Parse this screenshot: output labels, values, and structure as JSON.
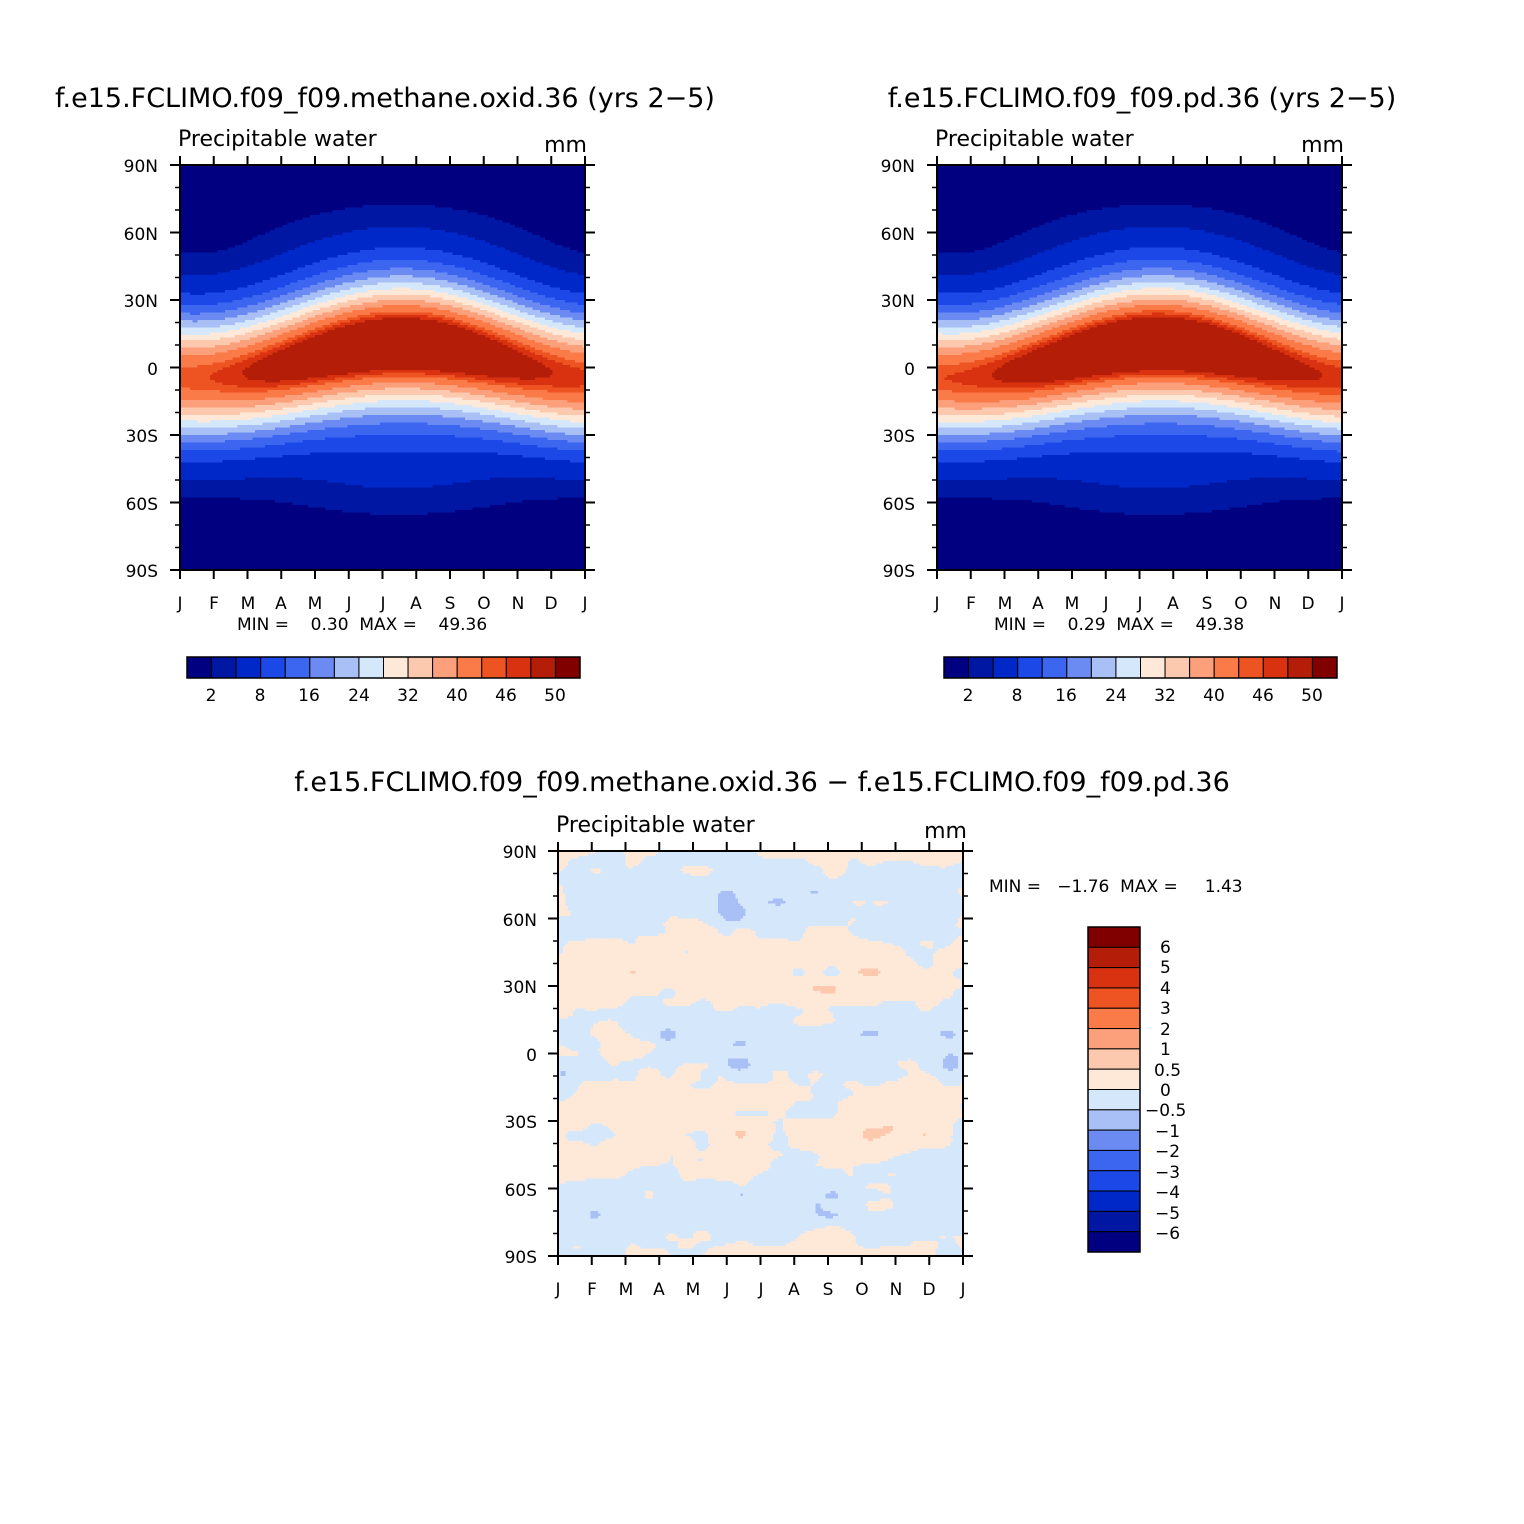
{
  "colors": {
    "abs_scale": [
      "#000080",
      "#0017a4",
      "#0028c8",
      "#1c48e8",
      "#3c66f0",
      "#6b8bf2",
      "#a8c0f5",
      "#d5e8fb",
      "#fee9d8",
      "#fcc8ae",
      "#fba07b",
      "#fa7a48",
      "#ee5322",
      "#d83210",
      "#b41e08",
      "#800000"
    ],
    "diff_scale": [
      "#800000",
      "#b41e08",
      "#d83210",
      "#ee5322",
      "#fa7a48",
      "#fba07b",
      "#fcc8ae",
      "#fee9d8",
      "#d5e8fb",
      "#a8c0f5",
      "#6b8bf2",
      "#3c66f0",
      "#1c48e8",
      "#0028c8",
      "#0017a4",
      "#000080"
    ]
  },
  "chart_data": [
    {
      "type": "heatmap",
      "title": "f.e15.FCLIMO.f09_f09.methane.oxid.36 (yrs 2−5)",
      "left_label": "Precipitable water",
      "right_label": "mm",
      "x_ticks": [
        "J",
        "F",
        "M",
        "A",
        "M",
        "J",
        "J",
        "A",
        "S",
        "O",
        "N",
        "D",
        "J"
      ],
      "y_ticks": [
        "90N",
        "60N",
        "30N",
        "0",
        "30S",
        "60S",
        "90S"
      ],
      "stats": "MIN =    0.30  MAX =    49.36",
      "min": 0.3,
      "max": 49.36,
      "colorbar_labels": [
        "2",
        "8",
        "16",
        "24",
        "32",
        "40",
        "46",
        "50"
      ]
    },
    {
      "type": "heatmap",
      "title": "f.e15.FCLIMO.f09_f09.pd.36 (yrs 2−5)",
      "left_label": "Precipitable water",
      "right_label": "mm",
      "x_ticks": [
        "J",
        "F",
        "M",
        "A",
        "M",
        "J",
        "J",
        "A",
        "S",
        "O",
        "N",
        "D",
        "J"
      ],
      "y_ticks": [
        "90N",
        "60N",
        "30N",
        "0",
        "30S",
        "60S",
        "90S"
      ],
      "stats": "MIN =    0.29  MAX =    49.38",
      "min": 0.29,
      "max": 49.38,
      "colorbar_labels": [
        "2",
        "8",
        "16",
        "24",
        "32",
        "40",
        "46",
        "50"
      ]
    },
    {
      "type": "heatmap",
      "title": "f.e15.FCLIMO.f09_f09.methane.oxid.36 − f.e15.FCLIMO.f09_f09.pd.36",
      "left_label": "Precipitable water",
      "right_label": "mm",
      "x_ticks": [
        "J",
        "F",
        "M",
        "A",
        "M",
        "J",
        "J",
        "A",
        "S",
        "O",
        "N",
        "D",
        "J"
      ],
      "y_ticks": [
        "90N",
        "60N",
        "30N",
        "0",
        "30S",
        "60S",
        "90S"
      ],
      "stats": "MIN =   −1.76  MAX =     1.43",
      "min": -1.76,
      "max": 1.43,
      "colorbar_labels": [
        "6",
        "5",
        "4",
        "3",
        "2",
        "1",
        "0.5",
        "0",
        "−0.5",
        "−1",
        "−2",
        "−3",
        "−4",
        "−5",
        "−6"
      ]
    }
  ]
}
